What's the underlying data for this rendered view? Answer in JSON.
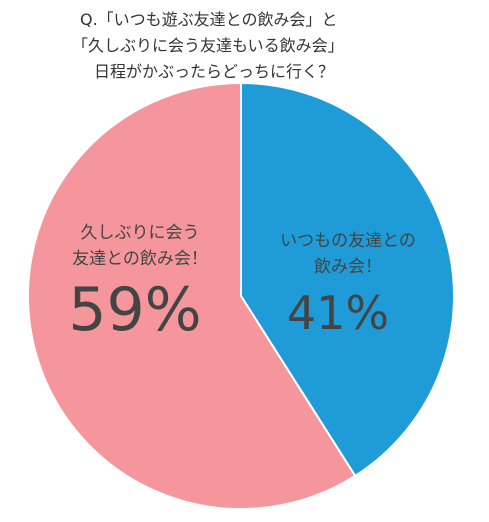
{
  "chart_data": {
    "type": "pie",
    "title": [
      "Q.「いつも遊ぶ友達との飲み会」と",
      "「久しぶりに会う友達もいる飲み会」",
      "日程がかぶったらどっちに行く？"
    ],
    "categories": [
      "いつもの友達との\n飲み会！",
      "久しぶりに会う\n友達との飲み会！"
    ],
    "values": [
      41,
      59
    ],
    "value_labels": [
      "41%",
      "59%"
    ],
    "colors": [
      "#1f9bd7",
      "#f4969c"
    ]
  }
}
